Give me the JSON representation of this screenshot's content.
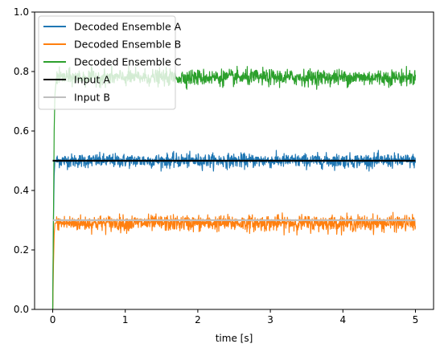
{
  "chart_data": {
    "type": "line",
    "title": "",
    "xlabel": "time [s]",
    "ylabel": "",
    "xlim": [
      -0.25,
      5.25
    ],
    "ylim": [
      0.0,
      1.0
    ],
    "xticks": [
      0,
      1,
      2,
      3,
      4,
      5
    ],
    "xtick_labels": [
      "0",
      "1",
      "2",
      "3",
      "4",
      "5"
    ],
    "yticks": [
      0.0,
      0.2,
      0.4,
      0.6,
      0.8,
      1.0
    ],
    "ytick_labels": [
      "0.0",
      "0.2",
      "0.4",
      "0.6",
      "0.8",
      "1.0"
    ],
    "grid": false,
    "legend_position": "upper-left",
    "series": [
      {
        "name": "Decoded Ensemble A",
        "color": "#1f77b4",
        "x": [
          0,
          0.01,
          0.02,
          0.03,
          0.05,
          0.1,
          0.5,
          1,
          1.5,
          2,
          2.5,
          3,
          3.5,
          4,
          4.5,
          5
        ],
        "y": [
          0.0,
          0.3,
          0.45,
          0.5,
          0.5,
          0.5,
          0.5,
          0.5,
          0.5,
          0.5,
          0.5,
          0.5,
          0.5,
          0.5,
          0.5,
          0.5
        ],
        "noise_band": [
          0.465,
          0.535
        ]
      },
      {
        "name": "Decoded Ensemble B",
        "color": "#ff7f0e",
        "x": [
          0,
          0.01,
          0.02,
          0.03,
          0.05,
          0.1,
          0.5,
          1,
          1.5,
          2,
          2.5,
          3,
          3.5,
          4,
          4.5,
          5
        ],
        "y": [
          0.0,
          0.15,
          0.25,
          0.29,
          0.29,
          0.29,
          0.29,
          0.29,
          0.29,
          0.29,
          0.29,
          0.29,
          0.29,
          0.29,
          0.29,
          0.29
        ],
        "noise_band": [
          0.25,
          0.33
        ]
      },
      {
        "name": "Decoded Ensemble C",
        "color": "#2ca02c",
        "x": [
          0,
          0.01,
          0.02,
          0.03,
          0.05,
          0.1,
          0.5,
          1,
          1.5,
          2,
          2.5,
          3,
          3.5,
          4,
          4.5,
          5
        ],
        "y": [
          0.0,
          0.3,
          0.6,
          0.72,
          0.78,
          0.78,
          0.78,
          0.78,
          0.78,
          0.78,
          0.78,
          0.78,
          0.78,
          0.78,
          0.78,
          0.78
        ],
        "noise_band": [
          0.74,
          0.82
        ]
      },
      {
        "name": "Input A",
        "color": "#000000",
        "x": [
          0,
          5
        ],
        "y": [
          0.5,
          0.5
        ]
      },
      {
        "name": "Input B",
        "color": "#bfbfbf",
        "x": [
          0,
          5
        ],
        "y": [
          0.3,
          0.3
        ]
      }
    ]
  }
}
